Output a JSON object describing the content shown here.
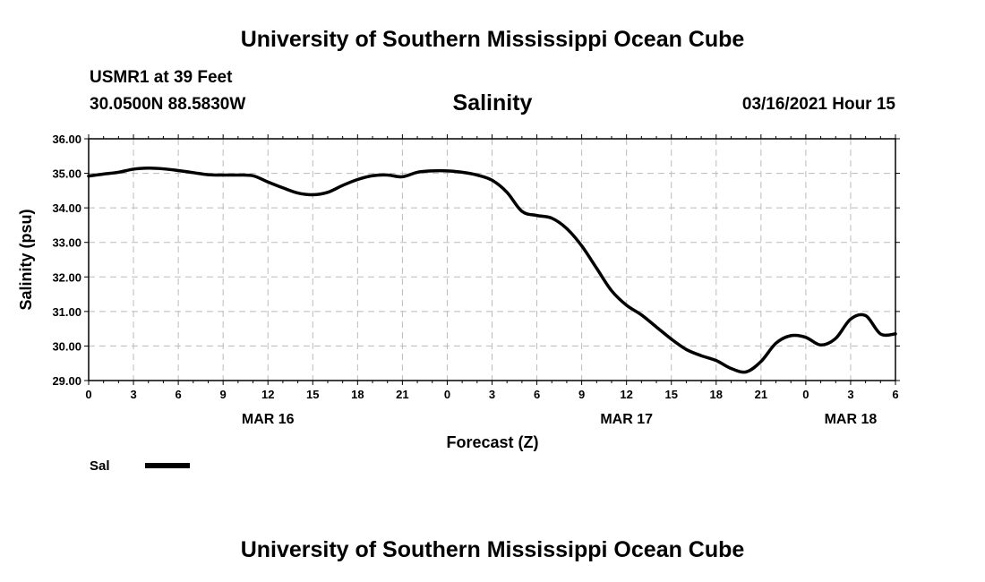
{
  "header": {
    "top_title": "University of Southern Mississippi Ocean Cube",
    "station": "USMR1 at 39 Feet",
    "coords": "30.0500N 88.5830W",
    "datetime": "03/16/2021 Hour 15",
    "bottom_title": "University of Southern Mississippi Ocean Cube"
  },
  "chart_data": {
    "type": "line",
    "title": "Salinity",
    "xlabel": "Forecast (Z)",
    "ylabel": "Salinity (psu)",
    "ylim": [
      29.0,
      36.0
    ],
    "xlim": [
      0,
      54
    ],
    "y_ticks": [
      "29.00",
      "30.00",
      "31.00",
      "32.00",
      "33.00",
      "34.00",
      "35.00",
      "36.00"
    ],
    "x_tick_labels": [
      "0",
      "3",
      "6",
      "9",
      "12",
      "15",
      "18",
      "21",
      "0",
      "3",
      "6",
      "9",
      "12",
      "15",
      "18",
      "21",
      "0",
      "3",
      "6"
    ],
    "day_labels": [
      {
        "label": "MAR 16",
        "hour": 12
      },
      {
        "label": "MAR 17",
        "hour": 36
      },
      {
        "label": "MAR 18",
        "hour": 51
      }
    ],
    "grid": true,
    "legend": [
      {
        "label": "Sal",
        "color": "#000000"
      }
    ],
    "series": [
      {
        "name": "Sal",
        "color": "#000000",
        "x": [
          0,
          1,
          2,
          3,
          4,
          5,
          6,
          7,
          8,
          9,
          10,
          11,
          12,
          13,
          14,
          15,
          16,
          17,
          18,
          19,
          20,
          21,
          22,
          23,
          24,
          25,
          26,
          27,
          28,
          29,
          30,
          31,
          32,
          33,
          34,
          35,
          36,
          37,
          38,
          39,
          40,
          41,
          42,
          43,
          44,
          45,
          46,
          47,
          48,
          49,
          50,
          51,
          52,
          53,
          54
        ],
        "values": [
          34.92,
          34.98,
          35.03,
          35.12,
          35.15,
          35.13,
          35.08,
          35.02,
          34.96,
          34.95,
          34.95,
          34.93,
          34.75,
          34.58,
          34.43,
          34.38,
          34.45,
          34.65,
          34.82,
          34.93,
          34.95,
          34.9,
          35.03,
          35.07,
          35.07,
          35.03,
          34.95,
          34.8,
          34.45,
          33.9,
          33.78,
          33.7,
          33.4,
          32.9,
          32.25,
          31.6,
          31.18,
          30.9,
          30.55,
          30.2,
          29.9,
          29.72,
          29.58,
          29.35,
          29.25,
          29.55,
          30.08,
          30.3,
          30.25,
          30.03,
          30.22,
          30.78,
          30.88,
          30.35,
          30.35
        ]
      }
    ]
  }
}
